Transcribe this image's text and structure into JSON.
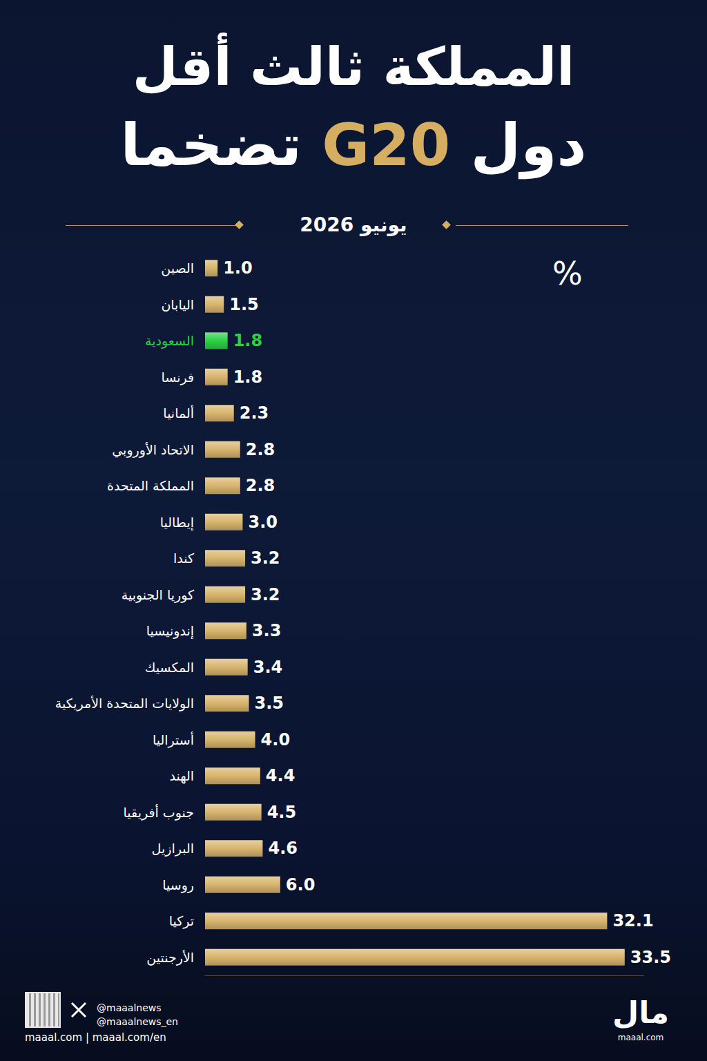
{
  "chart_data": {
    "type": "bar",
    "title": [
      "المملكة ثالث أقل",
      "دول G20 تضخما"
    ],
    "subtitle": "يونيو 2026",
    "annotation": "%",
    "orientation": "horizontal",
    "categories": [
      "الصين",
      "اليابان",
      "السعودية",
      "فرنسا",
      "ألمانيا",
      "الاتحاد الأوروبي",
      "المملكة المتحدة",
      "إيطاليا",
      "كندا",
      "كوريا الجنوبية",
      "إندونيسيا",
      "المكسيك",
      "الولايات المتحدة الأمريكية",
      "أستراليا",
      "الهند",
      "جنوب أفريقيا",
      "البرازيل",
      "روسيا",
      "تركيا",
      "الأرجنتين"
    ],
    "values": [
      1.0,
      1.5,
      1.8,
      1.8,
      2.3,
      2.8,
      2.8,
      3.0,
      3.2,
      3.2,
      3.3,
      3.4,
      3.5,
      4.0,
      4.4,
      4.5,
      4.6,
      6.0,
      32.1,
      33.5
    ],
    "value_labels": [
      "1.0",
      "1.5",
      "1.8",
      "1.8",
      "2.3",
      "2.8",
      "2.8",
      "3.0",
      "3.2",
      "3.2",
      "3.3",
      "3.4",
      "3.5",
      "4.0",
      "4.4",
      "4.5",
      "4.6",
      "6.0",
      "32.1",
      "33.5"
    ],
    "color": "#d8b56e",
    "colors": [
      "#d8b56e",
      "#d8b56e",
      "#2fcf47",
      "#d8b56e",
      "#d8b56e",
      "#d8b56e",
      "#d8b56e",
      "#d8b56e",
      "#d8b56e",
      "#d8b56e",
      "#d8b56e",
      "#d8b56e",
      "#d8b56e",
      "#d8b56e",
      "#d8b56e",
      "#d8b56e",
      "#d8b56e",
      "#d8b56e",
      "#d8b56e",
      "#d8b56e"
    ],
    "xlim": [
      0,
      35
    ],
    "xticks": [],
    "grid": false,
    "data_labels": true,
    "tick_labels": "y"
  },
  "footer": {
    "handles": [
      "@maaalnews",
      "@maaalnews_en"
    ],
    "sites": "maaal.com | maaal.com/en",
    "logo": "مال",
    "logo_site": "maaal.com"
  }
}
